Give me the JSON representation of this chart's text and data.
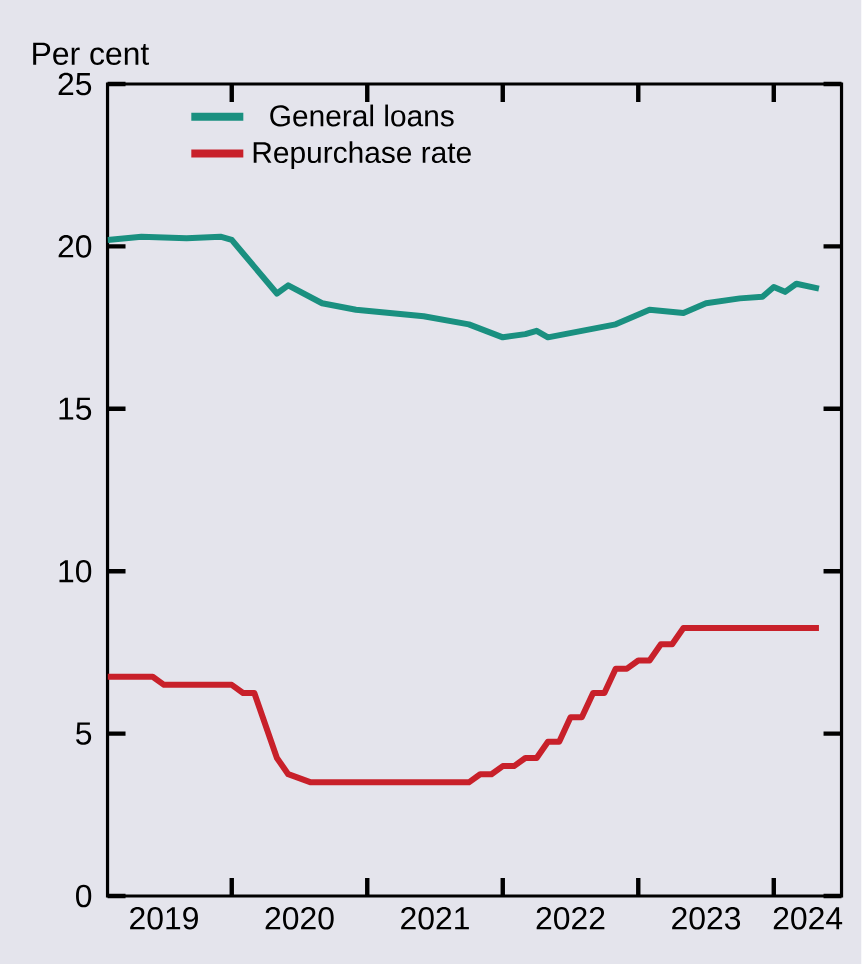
{
  "chart_data": {
    "type": "line",
    "ylabel": "Per cent",
    "xlim": [
      "2019-02",
      "2024-07"
    ],
    "ylim": [
      0,
      25
    ],
    "xticks": [
      {
        "value": "2020-01",
        "label": null
      },
      {
        "value": "2021-01",
        "label": null
      },
      {
        "value": "2022-01",
        "label": null
      },
      {
        "value": "2023-01",
        "label": null
      },
      {
        "value": "2024-01",
        "label": null
      },
      {
        "value": "2019-07",
        "label": "2019"
      },
      {
        "value": "2020-07",
        "label": "2020"
      },
      {
        "value": "2021-07",
        "label": "2021"
      },
      {
        "value": "2022-07",
        "label": "2022"
      },
      {
        "value": "2023-07",
        "label": "2023"
      },
      {
        "value": "2024-04",
        "label": "2024"
      }
    ],
    "yticks": [
      0,
      5,
      10,
      15,
      20,
      25
    ],
    "legend": "top left",
    "grid": false,
    "marker": "none",
    "line_style": "solid",
    "series": [
      {
        "name": "General loans",
        "color": "#1a9080",
        "x": [
          "2019-02",
          "2019-05",
          "2019-09",
          "2019-12",
          "2020-01",
          "2020-05",
          "2020-06",
          "2020-09",
          "2020-12",
          "2021-06",
          "2021-10",
          "2022-01",
          "2022-03",
          "2022-04",
          "2022-05",
          "2022-08",
          "2022-11",
          "2023-02",
          "2023-05",
          "2023-07",
          "2023-10",
          "2023-12",
          "2024-01",
          "2024-02",
          "2024-03",
          "2024-05"
        ],
        "values": [
          20.2,
          20.3,
          20.25,
          20.3,
          20.2,
          18.55,
          18.8,
          18.25,
          18.05,
          17.85,
          17.6,
          17.2,
          17.3,
          17.4,
          17.2,
          17.4,
          17.6,
          18.05,
          17.95,
          18.25,
          18.4,
          18.45,
          18.75,
          18.6,
          18.85,
          18.7
        ]
      },
      {
        "name": "Repurchase rate",
        "color": "#c8202a",
        "x": [
          "2019-02",
          "2019-06",
          "2019-07",
          "2020-01",
          "2020-02",
          "2020-03",
          "2020-05",
          "2020-06",
          "2020-08",
          "2021-10",
          "2021-11",
          "2021-12",
          "2022-01",
          "2022-02",
          "2022-03",
          "2022-04",
          "2022-05",
          "2022-06",
          "2022-07",
          "2022-08",
          "2022-09",
          "2022-10",
          "2022-11",
          "2022-12",
          "2023-01",
          "2023-02",
          "2023-03",
          "2023-04",
          "2023-05",
          "2024-05"
        ],
        "values": [
          6.75,
          6.75,
          6.5,
          6.5,
          6.25,
          6.25,
          4.25,
          3.75,
          3.5,
          3.5,
          3.75,
          3.75,
          4.0,
          4.0,
          4.25,
          4.25,
          4.75,
          4.75,
          5.5,
          5.5,
          6.25,
          6.25,
          7.0,
          7.0,
          7.25,
          7.25,
          7.75,
          7.75,
          8.25,
          8.25
        ]
      }
    ]
  }
}
